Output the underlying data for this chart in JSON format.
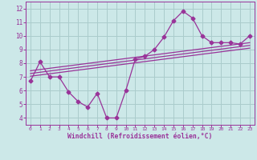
{
  "main_x": [
    0,
    1,
    2,
    3,
    4,
    5,
    6,
    7,
    8,
    9,
    10,
    11,
    12,
    13,
    14,
    15,
    16,
    17,
    18,
    19,
    20,
    21,
    22,
    23
  ],
  "main_y": [
    6.7,
    8.1,
    7.0,
    7.0,
    5.9,
    5.2,
    4.8,
    5.8,
    4.0,
    4.0,
    6.0,
    8.3,
    8.5,
    9.0,
    9.9,
    11.1,
    11.8,
    11.3,
    10.0,
    9.5,
    9.5,
    9.5,
    9.4,
    10.0
  ],
  "reg_lines": [
    {
      "x": [
        0,
        23
      ],
      "y": [
        7.05,
        9.1
      ]
    },
    {
      "x": [
        0,
        23
      ],
      "y": [
        7.25,
        9.3
      ]
    },
    {
      "x": [
        0,
        23
      ],
      "y": [
        7.45,
        9.5
      ]
    }
  ],
  "line_color": "#993399",
  "bg_color": "#cce8e8",
  "grid_color": "#aacccc",
  "xlabel": "Windchill (Refroidissement éolien,°C)",
  "xlim": [
    -0.5,
    23.5
  ],
  "ylim": [
    3.5,
    12.5
  ],
  "yticks": [
    4,
    5,
    6,
    7,
    8,
    9,
    10,
    11,
    12
  ],
  "xticks": [
    0,
    1,
    2,
    3,
    4,
    5,
    6,
    7,
    8,
    9,
    10,
    11,
    12,
    13,
    14,
    15,
    16,
    17,
    18,
    19,
    20,
    21,
    22,
    23
  ]
}
